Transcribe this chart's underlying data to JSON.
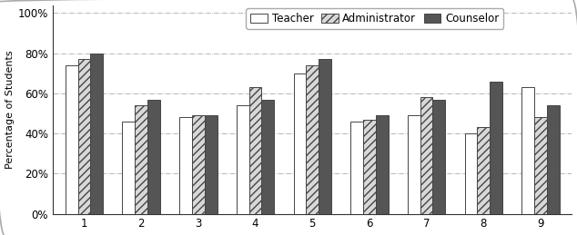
{
  "categories": [
    "1",
    "2",
    "3",
    "4",
    "5",
    "6",
    "7",
    "8",
    "9"
  ],
  "teacher": [
    0.74,
    0.46,
    0.48,
    0.54,
    0.7,
    0.46,
    0.49,
    0.4,
    0.63
  ],
  "administrator": [
    0.77,
    0.54,
    0.49,
    0.63,
    0.74,
    0.47,
    0.58,
    0.43,
    0.48
  ],
  "counselor": [
    0.8,
    0.57,
    0.49,
    0.57,
    0.77,
    0.49,
    0.57,
    0.66,
    0.54
  ],
  "teacher_color": "#ffffff",
  "administrator_color": "#d8d8d8",
  "counselor_color": "#555555",
  "teacher_hatch": "",
  "administrator_hatch": "////",
  "counselor_hatch": "",
  "ylabel": "Percentage of Students",
  "ylim": [
    0.0,
    1.04
  ],
  "yticks": [
    0.0,
    0.2,
    0.4,
    0.6,
    0.8,
    1.0
  ],
  "ytick_labels": [
    "0%",
    "20%",
    "40%",
    "60%",
    "80%",
    "100%"
  ],
  "legend_labels": [
    "Teacher",
    "Administrator",
    "Counselor"
  ],
  "bar_width": 0.22,
  "edge_color": "#444444",
  "grid_color": "#aaaaaa",
  "grid_style": "-.",
  "grid_linewidth": 0.6,
  "figwidth": 6.34,
  "figheight": 2.59,
  "dpi": 100
}
